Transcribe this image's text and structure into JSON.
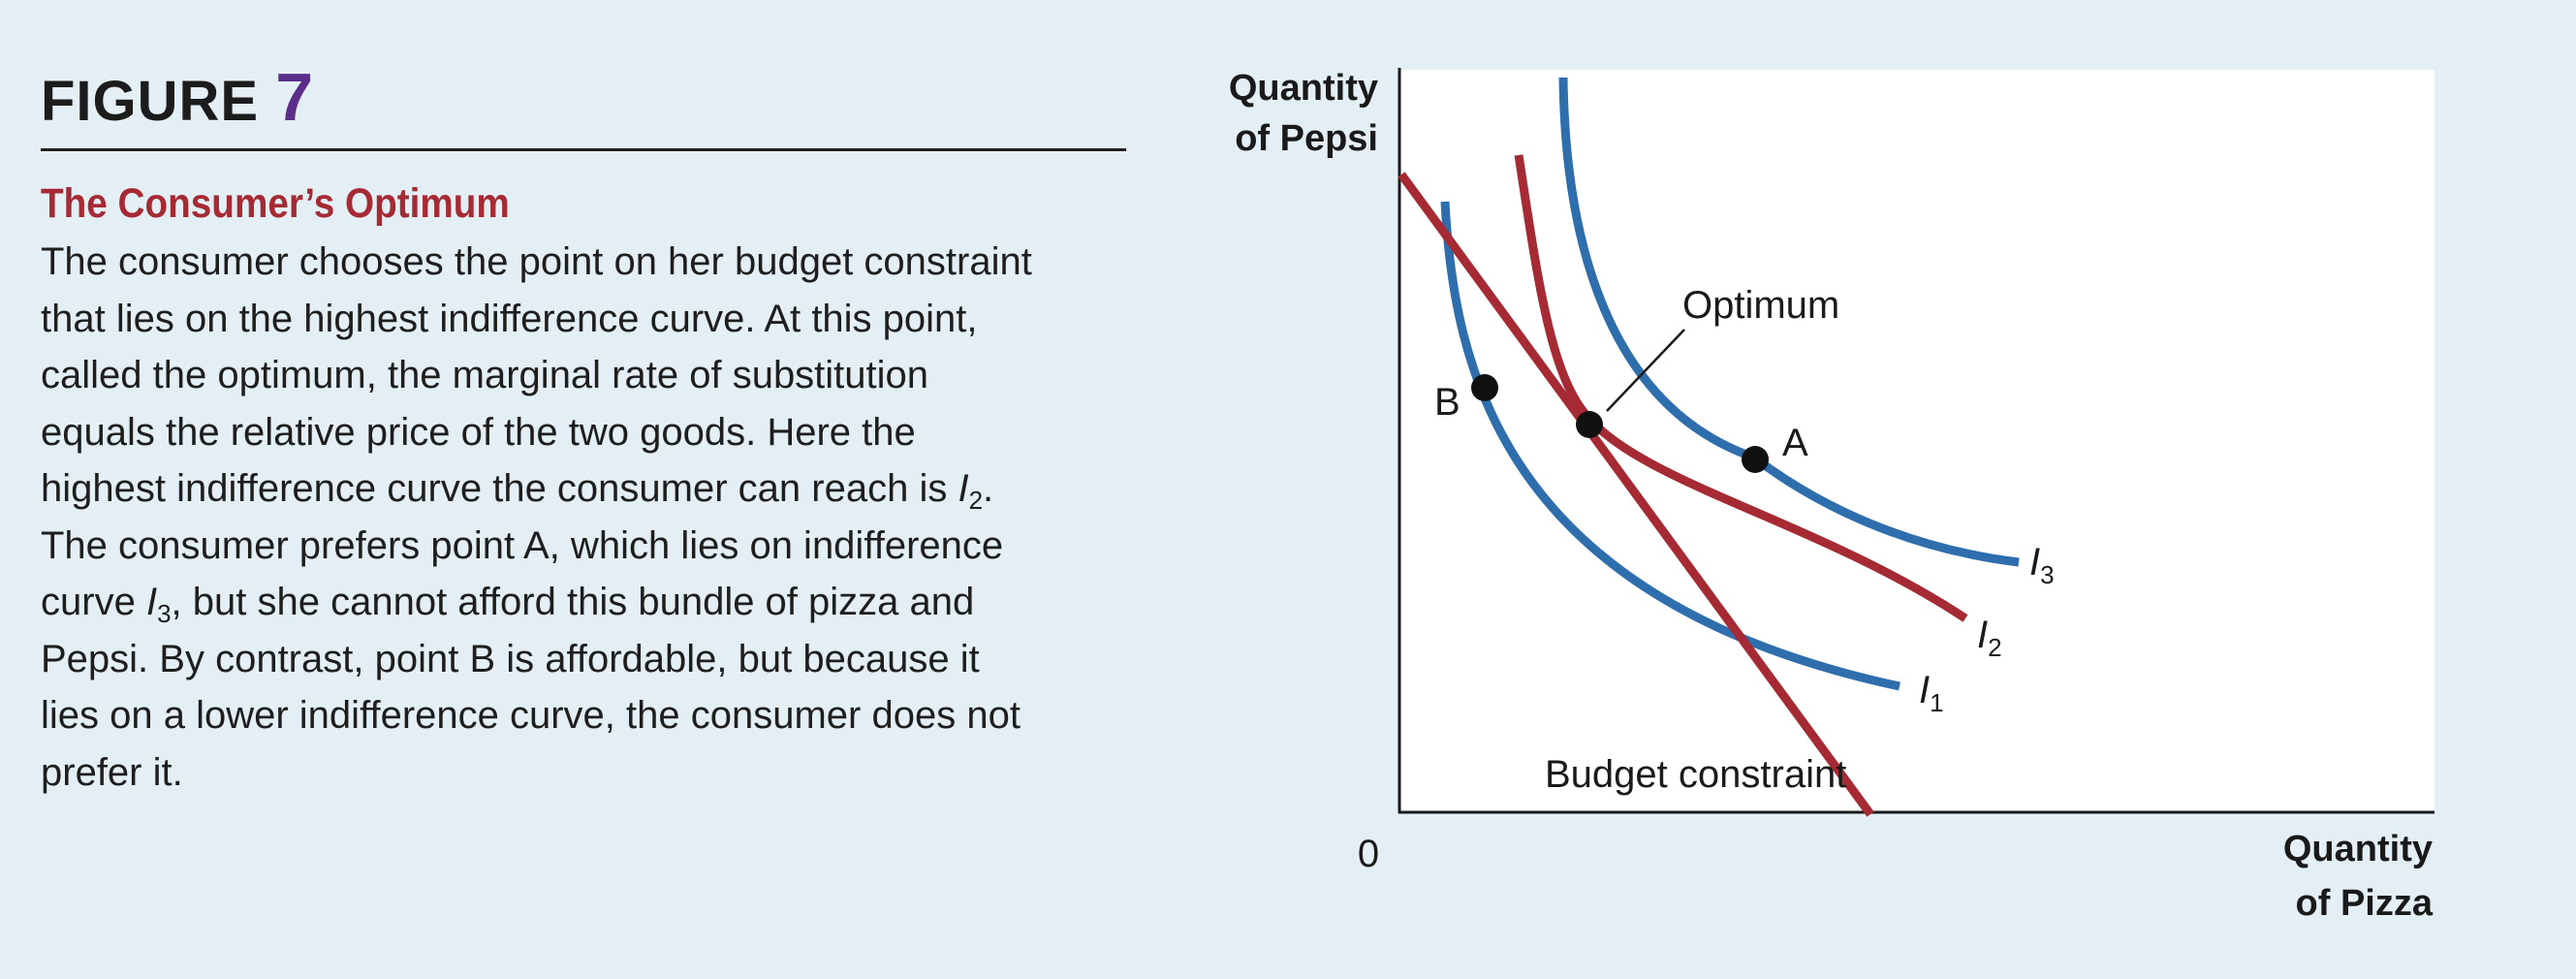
{
  "figure": {
    "label": "FIGURE",
    "number": "7"
  },
  "title": "The Consumer’s Optimum",
  "body_lines": [
    "The consumer chooses the point on her budget constraint",
    "that lies on the highest indifference curve. At this point,",
    "called the optimum, the marginal rate of substitution",
    "equals the relative price of the two goods. Here the",
    "highest indifference curve the consumer can reach is |I|2|.",
    "The consumer prefers point A, which lies on indifference",
    "curve |I|3|, but she cannot afford this bundle of pizza and",
    "Pepsi. By contrast, point B is affordable, but because it",
    "lies on a lower indifference curve, the consumer does not",
    "prefer it."
  ],
  "diagram": {
    "y_axis_label": [
      "Quantity",
      "of Pepsi"
    ],
    "x_axis_label": [
      "Quantity",
      "of Pizza"
    ],
    "origin_label": "0",
    "optimum_label": "Optimum",
    "budget_label": "Budget constraint",
    "point_a_label": "A",
    "point_b_label": "B",
    "curves": [
      {
        "name": "I",
        "sub": "1",
        "color": "#2f6ead"
      },
      {
        "name": "I",
        "sub": "2",
        "color": "#a52a33"
      },
      {
        "name": "I",
        "sub": "3",
        "color": "#2f6ead"
      }
    ],
    "budget_color": "#a52a33",
    "plot_background": "#ffffff"
  }
}
